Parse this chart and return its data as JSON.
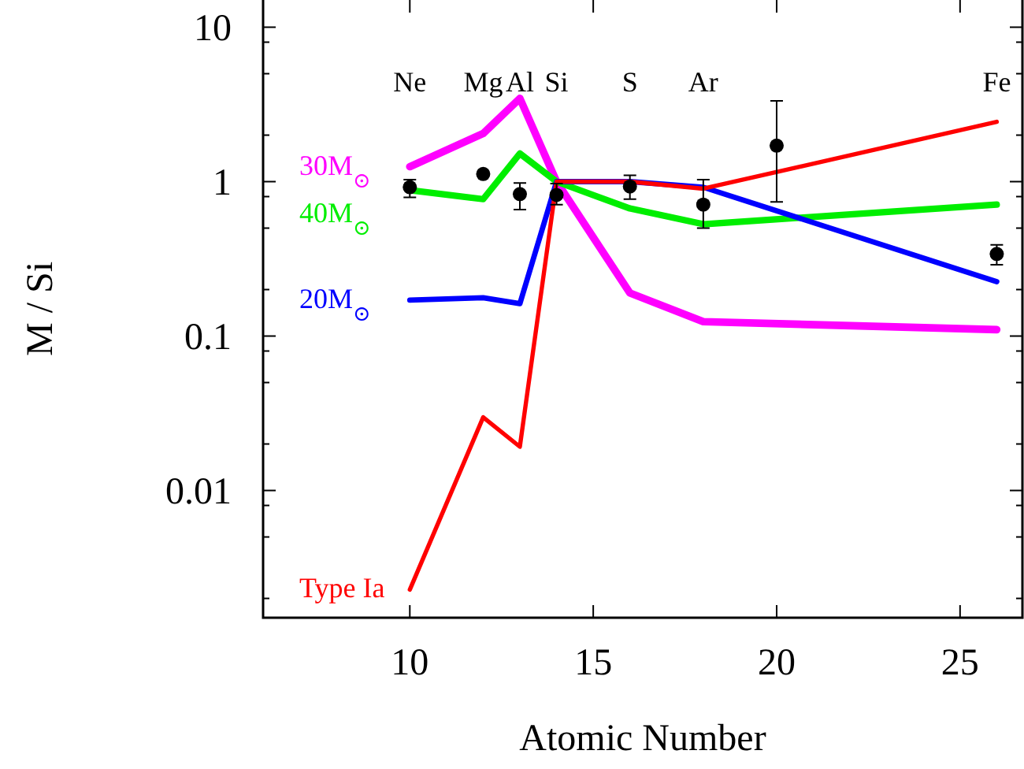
{
  "chart_data": {
    "type": "line",
    "xlabel": "Atomic Number",
    "ylabel": "M / Si",
    "log": "y",
    "grid": false,
    "legend": false,
    "line_style": "solid",
    "xlim": [
      6,
      26.7
    ],
    "xticks": [
      10,
      15,
      20,
      25
    ],
    "ylim": [
      0.0015,
      15
    ],
    "yticks": [
      {
        "value": 0.002,
        "label": null
      },
      {
        "value": 0.005,
        "label": null
      },
      {
        "value": 0.008,
        "label": null
      },
      0.01,
      {
        "value": 0.02,
        "label": null
      },
      {
        "value": 0.05,
        "label": null
      },
      {
        "value": 0.08,
        "label": null
      },
      0.1,
      {
        "value": 0.2,
        "label": null
      },
      {
        "value": 0.5,
        "label": null
      },
      {
        "value": 0.8,
        "label": null
      },
      1,
      {
        "value": 2,
        "label": null
      },
      {
        "value": 5,
        "label": null
      },
      {
        "value": 8,
        "label": null
      },
      10
    ],
    "x": [
      10,
      12,
      13,
      14,
      16,
      18,
      26
    ],
    "series": [
      {
        "name": "30M$_{⊙}$",
        "color": "#ff00ff",
        "values": [
          1.25,
          2.05,
          3.46,
          1.0,
          0.19,
          0.124,
          0.11
        ]
      },
      {
        "name": "40M$_{⊙}$",
        "color": "#00ee00",
        "values": [
          0.88,
          0.77,
          1.52,
          1.0,
          0.67,
          0.53,
          0.71
        ]
      },
      {
        "name": "20M$_{⊙}$",
        "color": "#0000ff",
        "values": [
          0.171,
          0.177,
          0.162,
          1.0,
          1.0,
          0.92,
          0.225
        ]
      },
      {
        "name": "Type Ia",
        "color": "#ff0000",
        "values": [
          0.00228,
          0.0298,
          0.0192,
          1.0,
          1.0,
          0.9,
          2.44
        ]
      },
      {
        "type": "scatter",
        "color": "#000000",
        "marker": "circle",
        "x": [
          10,
          12,
          13,
          14,
          16,
          18,
          20,
          26
        ],
        "values": [
          0.92,
          1.12,
          0.83,
          0.82,
          0.93,
          0.71,
          1.71,
          0.34
        ],
        "errors": [
          [
            0.79,
            1.03
          ],
          null,
          [
            0.66,
            0.98
          ],
          [
            0.71,
            0.97
          ],
          [
            0.77,
            1.1
          ],
          [
            0.5,
            1.03
          ],
          [
            0.74,
            3.33
          ],
          [
            0.29,
            0.39
          ]
        ]
      }
    ],
    "annotations": [
      "Ne",
      "Mg",
      "Al",
      "Si",
      "S",
      "Ar",
      "Fe"
    ]
  }
}
